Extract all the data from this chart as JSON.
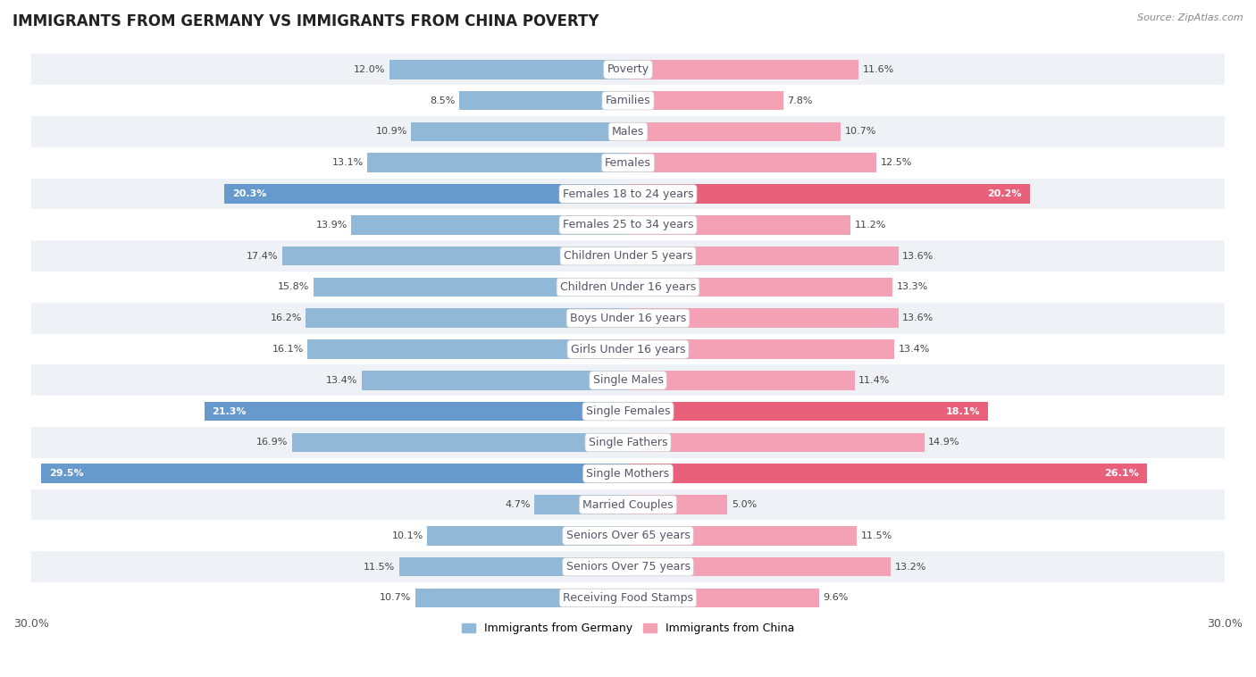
{
  "title": "IMMIGRANTS FROM GERMANY VS IMMIGRANTS FROM CHINA POVERTY",
  "source": "Source: ZipAtlas.com",
  "categories": [
    "Poverty",
    "Families",
    "Males",
    "Females",
    "Females 18 to 24 years",
    "Females 25 to 34 years",
    "Children Under 5 years",
    "Children Under 16 years",
    "Boys Under 16 years",
    "Girls Under 16 years",
    "Single Males",
    "Single Females",
    "Single Fathers",
    "Single Mothers",
    "Married Couples",
    "Seniors Over 65 years",
    "Seniors Over 75 years",
    "Receiving Food Stamps"
  ],
  "germany_values": [
    12.0,
    8.5,
    10.9,
    13.1,
    20.3,
    13.9,
    17.4,
    15.8,
    16.2,
    16.1,
    13.4,
    21.3,
    16.9,
    29.5,
    4.7,
    10.1,
    11.5,
    10.7
  ],
  "china_values": [
    11.6,
    7.8,
    10.7,
    12.5,
    20.2,
    11.2,
    13.6,
    13.3,
    13.6,
    13.4,
    11.4,
    18.1,
    14.9,
    26.1,
    5.0,
    11.5,
    13.2,
    9.6
  ],
  "germany_color": "#92b8d8",
  "china_color": "#f4a0b5",
  "germany_highlight_indices": [
    4,
    11,
    13
  ],
  "china_highlight_indices": [
    4,
    11,
    13
  ],
  "germany_highlight_color": "#6699cc",
  "china_highlight_color": "#e8607a",
  "xlim": 30.0,
  "bar_height": 0.62,
  "bg_color": "#ffffff",
  "row_even_color": "#eef2f7",
  "row_odd_color": "#ffffff",
  "legend_germany": "Immigrants from Germany",
  "legend_china": "Immigrants from China",
  "title_fontsize": 12,
  "label_fontsize": 9,
  "value_fontsize": 8,
  "axis_fontsize": 9,
  "label_color": "#555566"
}
